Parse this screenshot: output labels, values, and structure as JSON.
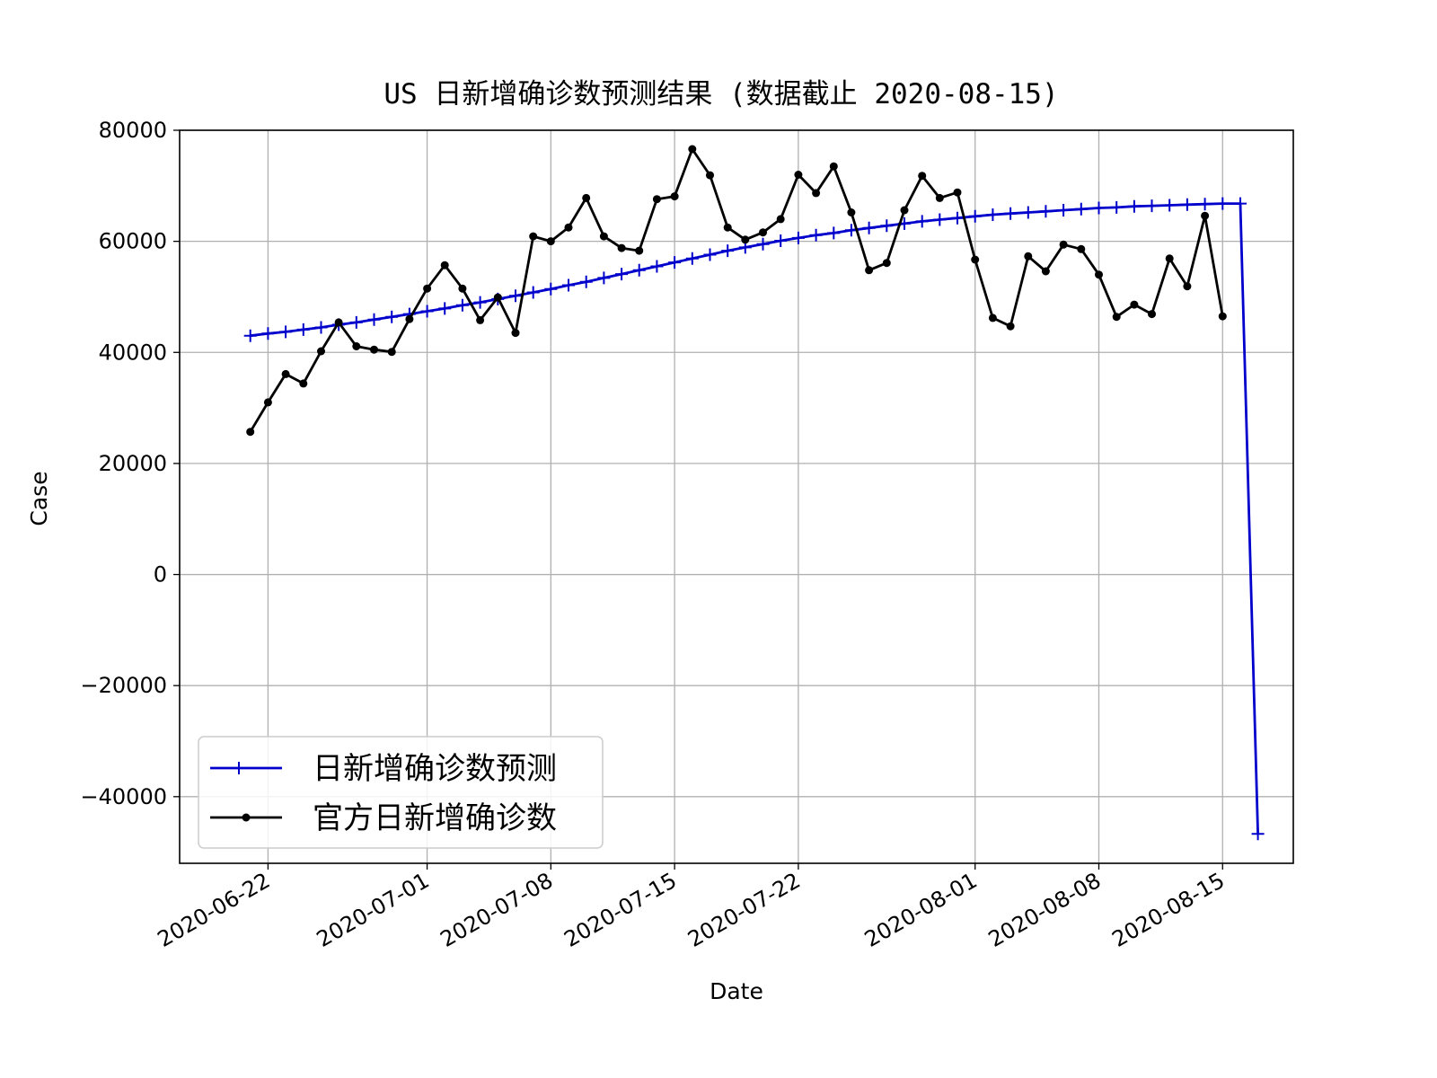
{
  "chart_data": {
    "type": "line",
    "title": "US 日新增确诊数预测结果 (数据截止 2020-08-15)",
    "xlabel": "Date",
    "ylabel": "Case",
    "x_start": "2020-06-21",
    "x_range": [
      "2020-06-17",
      "2020-08-19"
    ],
    "ylim": [
      -52000,
      80000
    ],
    "yticks": [
      80000,
      60000,
      40000,
      20000,
      0,
      -20000,
      -40000
    ],
    "ytick_labels": [
      "80000",
      "60000",
      "40000",
      "20000",
      "0",
      "−20000",
      "−40000"
    ],
    "xticks": [
      "2020-06-22",
      "2020-07-01",
      "2020-07-08",
      "2020-07-15",
      "2020-07-22",
      "2020-08-01",
      "2020-08-08",
      "2020-08-15"
    ],
    "grid": true,
    "legend_position": "lower-left",
    "series": [
      {
        "name": "日新增确诊数预测",
        "color": "#0000cc",
        "marker": "plus",
        "values": [
          43000,
          43400,
          43700,
          44100,
          44500,
          45000,
          45400,
          45900,
          46400,
          46900,
          47400,
          47900,
          48500,
          49000,
          49600,
          50200,
          50800,
          51400,
          52100,
          52700,
          53400,
          54100,
          54800,
          55500,
          56200,
          56900,
          57600,
          58300,
          58900,
          59500,
          60100,
          60600,
          61100,
          61500,
          62000,
          62400,
          62800,
          63200,
          63600,
          63900,
          64200,
          64500,
          64800,
          65000,
          65200,
          65400,
          65600,
          65800,
          66000,
          66100,
          66300,
          66400,
          66500,
          66600,
          66700,
          66800,
          66800,
          -46700
        ]
      },
      {
        "name": "官方日新增确诊数",
        "color": "#000000",
        "marker": "dot",
        "values": [
          25700,
          31000,
          36100,
          34400,
          40200,
          45400,
          41100,
          40500,
          40100,
          46000,
          51500,
          55700,
          51500,
          45800,
          49900,
          43500,
          60900,
          60000,
          62500,
          67800,
          60900,
          58800,
          58300,
          67600,
          68100,
          76600,
          71900,
          62500,
          60300,
          61600,
          64000,
          72000,
          68700,
          73500,
          65200,
          54800,
          56100,
          65600,
          71800,
          67800,
          68800,
          56700,
          46200,
          44700,
          57300,
          54600,
          59400,
          58600,
          54000,
          46400,
          48600,
          46900,
          56900,
          51900,
          64600,
          46500
        ]
      }
    ]
  }
}
